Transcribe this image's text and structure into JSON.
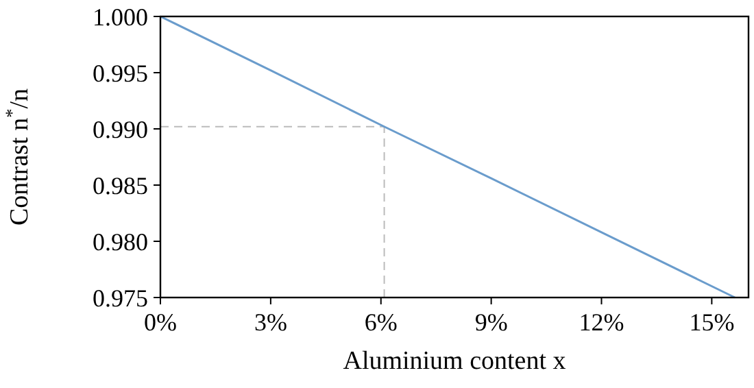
{
  "chart_data": {
    "type": "line",
    "xlabel": "Aluminium content x",
    "ylabel": "Contrast n$^{*}$/n",
    "x": [
      0,
      3,
      6.09,
      9,
      12,
      15.63
    ],
    "series": [
      {
        "color": "#6a9ccc",
        "values": [
          1.0,
          0.9952,
          0.9902,
          0.9856,
          0.9808,
          0.975
        ]
      }
    ],
    "xlim": [
      0,
      16
    ],
    "xticks": [
      {
        "value": 0,
        "label": "0%"
      },
      {
        "value": 3,
        "label": "3%"
      },
      {
        "value": 6,
        "label": "6%"
      },
      {
        "value": 9,
        "label": "9%"
      },
      {
        "value": 12,
        "label": "12%"
      },
      {
        "value": 15,
        "label": "15%"
      }
    ],
    "ylim": [
      0.975,
      1.0
    ],
    "yticks": [
      {
        "value": 0.975,
        "label": "0.975"
      },
      {
        "value": 0.98,
        "label": "0.980"
      },
      {
        "value": 0.985,
        "label": "0.985"
      },
      {
        "value": 0.99,
        "label": "0.990"
      },
      {
        "value": 0.995,
        "label": "0.995"
      },
      {
        "value": 1.0,
        "label": "1.000"
      }
    ],
    "ref_lines": [
      {
        "axis": "x",
        "value": 6.09,
        "color": "#bbbbbb",
        "line_style": "dashed"
      },
      {
        "axis": "y",
        "value": 0.9902,
        "color": "#bbbbbb",
        "line_style": "dashed"
      }
    ],
    "grid": false,
    "marker": "none",
    "line_style": "solid"
  }
}
